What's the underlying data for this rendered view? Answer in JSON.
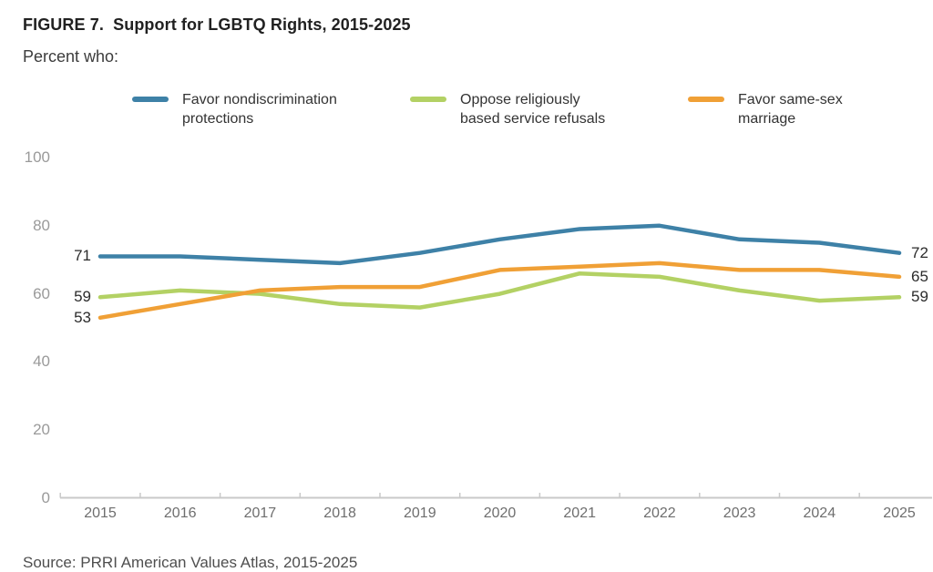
{
  "figure": {
    "title": "FIGURE 7.  Support for LGBTQ Rights, 2015-2025",
    "subtitle": "Percent who:",
    "source": "Source: PRRI American Values Atlas, 2015-2025"
  },
  "legend": {
    "items": [
      {
        "line1": "Favor nondiscrimination",
        "line2": "protections"
      },
      {
        "line1": "Oppose religiously",
        "line2": "based service refusals"
      },
      {
        "line1": "Favor same-sex",
        "line2": "marriage"
      }
    ]
  },
  "colors": {
    "series_blue": "#3e81a7",
    "series_green": "#b3d164",
    "series_orange": "#f0a036",
    "axis": "#c9c9c9"
  },
  "chart_data": {
    "type": "line",
    "title": "FIGURE 7. Support for LGBTQ Rights, 2015-2025",
    "subtitle": "Percent who:",
    "x": [
      2015,
      2016,
      2017,
      2018,
      2019,
      2020,
      2021,
      2022,
      2023,
      2024,
      2025
    ],
    "series": [
      {
        "name": "Favor nondiscrimination protections",
        "color": "#3e81a7",
        "values": [
          71,
          71,
          70,
          69,
          72,
          76,
          79,
          80,
          76,
          75,
          72
        ],
        "first_point_label": "71",
        "last_point_label": "72"
      },
      {
        "name": "Oppose religiously based service refusals",
        "color": "#b3d164",
        "values": [
          59,
          61,
          60,
          57,
          56,
          60,
          66,
          65,
          61,
          58,
          59
        ],
        "first_point_label": "59",
        "last_point_label": "59"
      },
      {
        "name": "Favor same-sex marriage",
        "color": "#f0a036",
        "values": [
          53,
          57,
          61,
          62,
          62,
          67,
          68,
          69,
          67,
          67,
          65
        ],
        "first_point_label": "53",
        "last_point_label": "65"
      }
    ],
    "xlabel": "",
    "ylabel": "",
    "ylim": [
      0,
      100
    ],
    "yticks": [
      0,
      20,
      40,
      60,
      80,
      100
    ],
    "grid": false,
    "legend_position": "top",
    "source": "Source: PRRI American Values Atlas, 2015-2025"
  }
}
